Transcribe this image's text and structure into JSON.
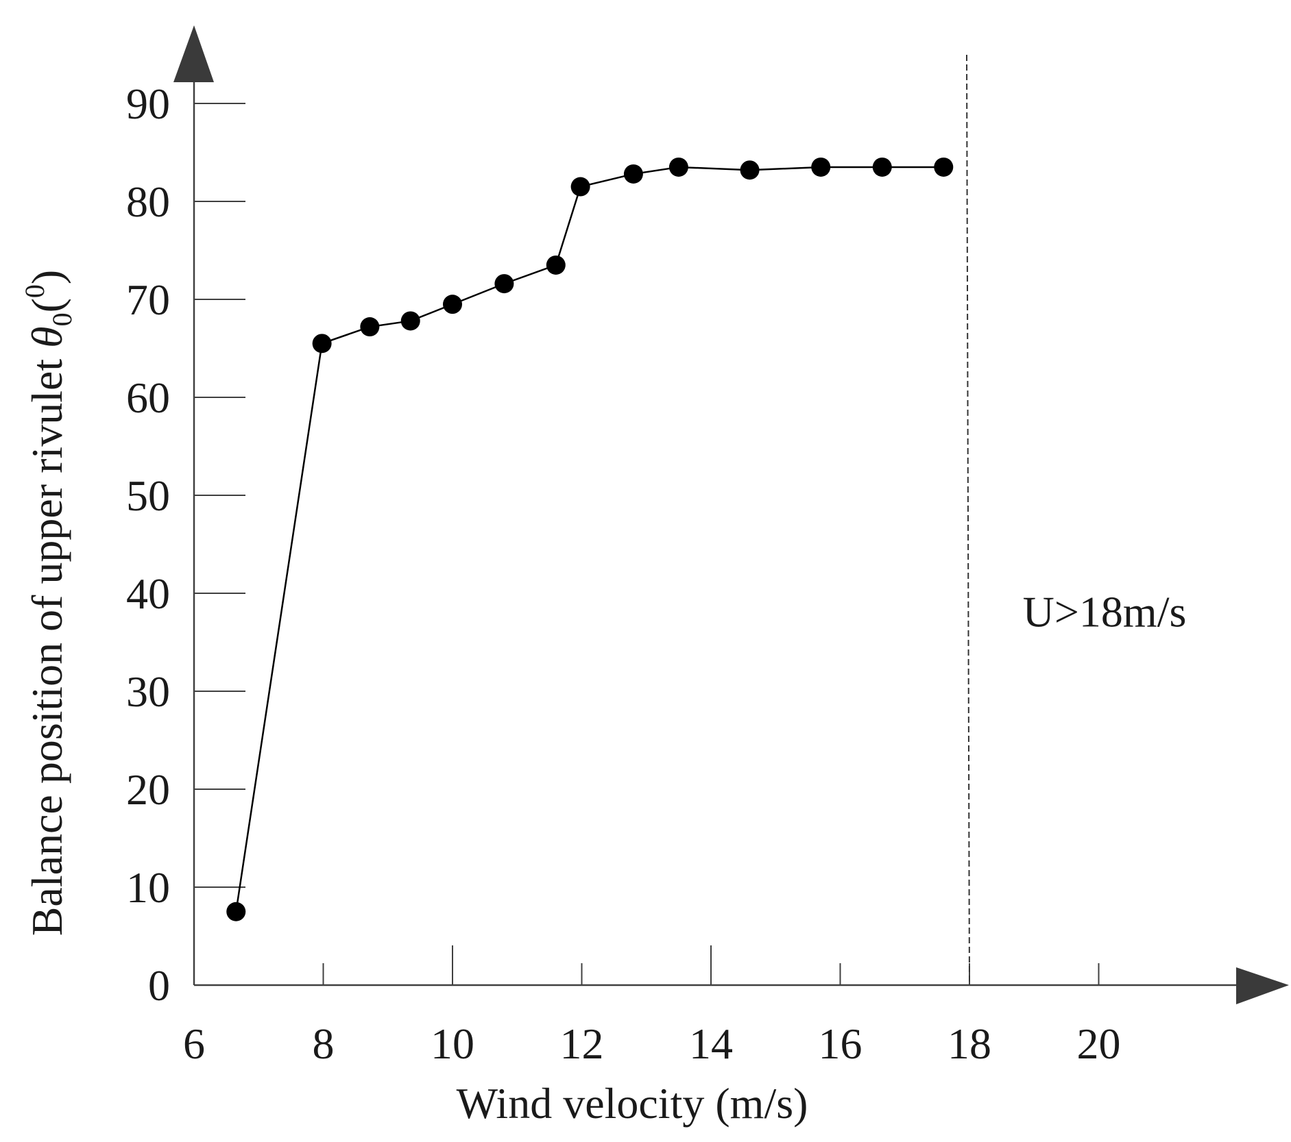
{
  "chart_data": {
    "type": "line",
    "title": "",
    "xlabel": "Wind velocity (m/s)",
    "ylabel": {
      "main": "Balance position of upper rivulet",
      "symbol": "θ",
      "subscript": "0",
      "unit_open": "(",
      "unit": "0",
      "unit_close": ")"
    },
    "xlim": [
      6,
      22
    ],
    "ylim": [
      0,
      95
    ],
    "xticks": [
      {
        "value": 6,
        "label": "6"
      },
      {
        "value": 8,
        "label": "8"
      },
      {
        "value": 10,
        "label": "10"
      },
      {
        "value": 12,
        "label": "12"
      },
      {
        "value": 14,
        "label": "14"
      },
      {
        "value": 16,
        "label": "16"
      },
      {
        "value": 18,
        "label": "18"
      },
      {
        "value": 20,
        "label": "20"
      }
    ],
    "yticks": [
      {
        "value": 0,
        "label": "0"
      },
      {
        "value": 10,
        "label": "10"
      },
      {
        "value": 20,
        "label": "20"
      },
      {
        "value": 30,
        "label": "30"
      },
      {
        "value": 40,
        "label": "40"
      },
      {
        "value": 50,
        "label": "50"
      },
      {
        "value": 60,
        "label": "60"
      },
      {
        "value": 70,
        "label": "70"
      },
      {
        "value": 80,
        "label": "80"
      },
      {
        "value": 90,
        "label": "90"
      }
    ],
    "series": [
      {
        "name": "Balance position",
        "marker": "filled-circle",
        "x": [
          6.65,
          7.98,
          8.72,
          9.35,
          10.0,
          10.8,
          11.6,
          11.98,
          12.8,
          13.5,
          14.6,
          15.7,
          16.65,
          17.6
        ],
        "y": [
          7.5,
          65.5,
          67.2,
          67.8,
          69.5,
          71.6,
          73.5,
          81.5,
          82.8,
          83.5,
          83.2,
          83.5,
          83.5,
          83.5
        ]
      }
    ],
    "threshold": {
      "x": 18,
      "style": "dashed",
      "label": "U>18m/s",
      "label_y": 38
    },
    "grid": false,
    "legend": "none"
  }
}
